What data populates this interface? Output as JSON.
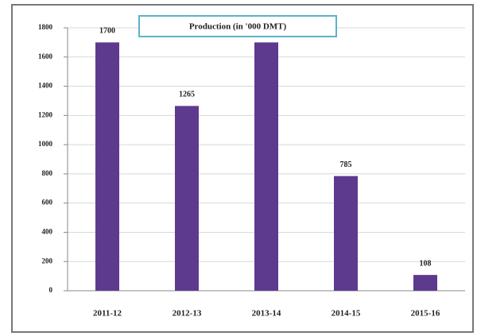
{
  "chart_data": {
    "type": "bar",
    "title": "Production (in '000 DMT)",
    "categories": [
      "2011-12",
      "2012-13",
      "2013-14",
      "2014-15",
      "2015-16"
    ],
    "values": [
      1700,
      1265,
      1700,
      785,
      108
    ],
    "color": "#5e3a8e",
    "ylim": [
      0,
      1800
    ],
    "yticks": [
      0,
      200,
      400,
      600,
      800,
      1000,
      1200,
      1400,
      1600,
      1800
    ],
    "grid": true
  }
}
